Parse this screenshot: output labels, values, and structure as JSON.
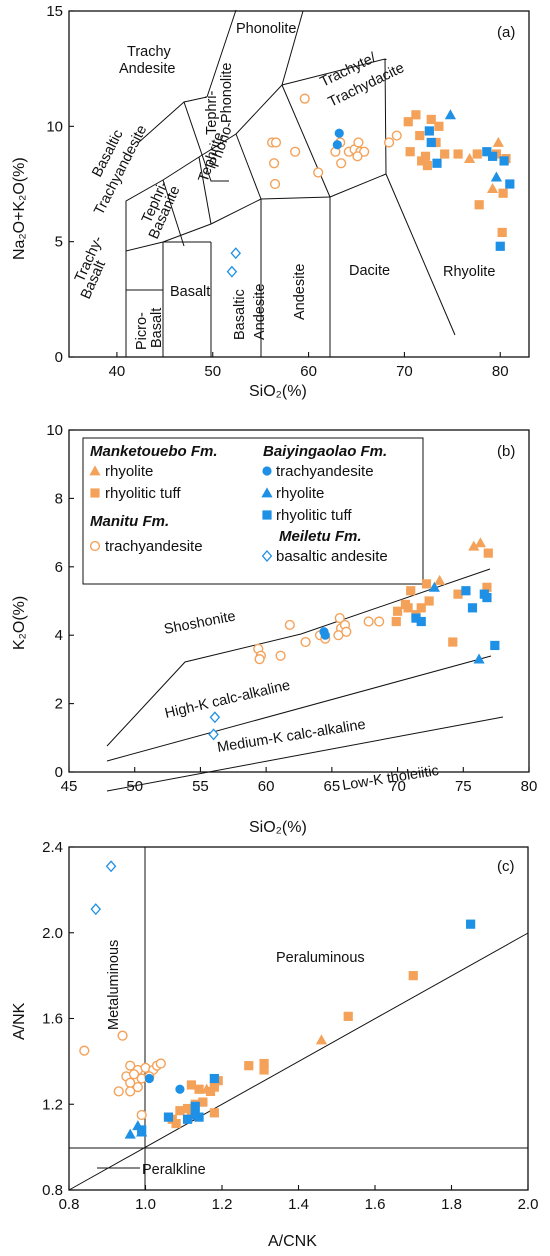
{
  "colors": {
    "orange": "#f4a259",
    "blue": "#1e90e6"
  },
  "legend": {
    "groups": [
      {
        "title": "Manketouebo Fm.",
        "items": [
          {
            "label": "rhyolite",
            "marker": "triangle",
            "color": "#f4a259"
          },
          {
            "label": "rhyolitic tuff",
            "marker": "square",
            "color": "#f4a259"
          }
        ]
      },
      {
        "title": "Manitu Fm.",
        "items": [
          {
            "label": "trachyandesite",
            "marker": "circle-open",
            "color": "#f4a259"
          }
        ]
      },
      {
        "title": "Baiyingaolao Fm.",
        "items": [
          {
            "label": "trachyandesite",
            "marker": "circle",
            "color": "#1e90e6"
          },
          {
            "label": "rhyolite",
            "marker": "triangle",
            "color": "#1e90e6"
          },
          {
            "label": "rhyolitic tuff",
            "marker": "square",
            "color": "#1e90e6"
          }
        ]
      },
      {
        "title": "Meiletu Fm.",
        "items": [
          {
            "label": "basaltic andesite",
            "marker": "diamond-open",
            "color": "#1e90e6"
          }
        ]
      }
    ]
  },
  "chart_data": [
    {
      "panel": "(a)",
      "type": "scatter",
      "xlabel": "SiO₂(%)",
      "ylabel": "Na₂O+K₂O(%)",
      "xlim": [
        35,
        83
      ],
      "ylim": [
        0,
        15
      ],
      "xticks": [
        40,
        50,
        60,
        70,
        80
      ],
      "yticks": [
        0,
        5,
        10,
        15
      ],
      "fields": [
        "Phonolite",
        "Trachy",
        "Andesite",
        "Tephri-",
        "Phonolite",
        "Trachyte/",
        "Trachydacite",
        "Basaltic",
        "Trachyandesite",
        "Phono-",
        "Tephrite",
        "Tephri-",
        "Basanite",
        "Trachy-",
        "Basalt",
        "Basalt",
        "Picro-",
        "Basalt",
        "Basaltic",
        "Andesite",
        "Andesite",
        "Dacite",
        "Rhyolite"
      ],
      "series": [
        {
          "formation": "Manketouebo Fm.",
          "rock": "rhyolite",
          "marker": "triangle",
          "color": "#f4a259",
          "points": [
            [
              76.8,
              8.6
            ],
            [
              79.8,
              9.3
            ],
            [
              79.2,
              7.3
            ]
          ]
        },
        {
          "formation": "Manketouebo Fm.",
          "rock": "rhyolitic tuff",
          "marker": "square",
          "color": "#f4a259",
          "points": [
            [
              71.2,
              10.5
            ],
            [
              70.4,
              10.2
            ],
            [
              72.8,
              10.3
            ],
            [
              73.6,
              10.0
            ],
            [
              71.6,
              9.6
            ],
            [
              73.3,
              9.3
            ],
            [
              70.6,
              8.9
            ],
            [
              72.2,
              8.7
            ],
            [
              71.8,
              8.5
            ],
            [
              72.4,
              8.3
            ],
            [
              74.2,
              8.8
            ],
            [
              75.6,
              8.8
            ],
            [
              77.6,
              8.8
            ],
            [
              79.6,
              8.8
            ],
            [
              80.6,
              8.6
            ],
            [
              80.3,
              7.1
            ],
            [
              77.8,
              6.6
            ],
            [
              80.2,
              5.4
            ]
          ]
        },
        {
          "formation": "Manitu Fm.",
          "rock": "trachyandesite",
          "marker": "circle-open",
          "color": "#f4a259",
          "points": [
            [
              59.6,
              11.2
            ],
            [
              56.2,
              9.3
            ],
            [
              56.6,
              9.3
            ],
            [
              58.6,
              8.9
            ],
            [
              56.4,
              8.4
            ],
            [
              56.5,
              7.5
            ],
            [
              61.0,
              8.0
            ],
            [
              62.8,
              8.9
            ],
            [
              63.3,
              9.3
            ],
            [
              63.4,
              8.4
            ],
            [
              64.2,
              8.9
            ],
            [
              64.8,
              9.0
            ],
            [
              65.2,
              9.3
            ],
            [
              65.4,
              8.9
            ],
            [
              65.8,
              8.9
            ],
            [
              65.1,
              8.7
            ],
            [
              68.4,
              9.3
            ],
            [
              69.2,
              9.6
            ]
          ]
        },
        {
          "formation": "Baiyingaolao Fm.",
          "rock": "trachyandesite",
          "marker": "circle",
          "color": "#1e90e6",
          "points": [
            [
              63.2,
              9.7
            ],
            [
              63.0,
              9.2
            ]
          ]
        },
        {
          "formation": "Baiyingaolao Fm.",
          "rock": "rhyolite",
          "marker": "triangle",
          "color": "#1e90e6",
          "points": [
            [
              74.8,
              10.5
            ],
            [
              79.6,
              7.8
            ]
          ]
        },
        {
          "formation": "Baiyingaolao Fm.",
          "rock": "rhyolitic tuff",
          "marker": "square",
          "color": "#1e90e6",
          "points": [
            [
              72.6,
              9.8
            ],
            [
              72.8,
              9.3
            ],
            [
              73.4,
              8.4
            ],
            [
              78.6,
              8.9
            ],
            [
              79.2,
              8.7
            ],
            [
              80.4,
              8.5
            ],
            [
              81.0,
              7.5
            ],
            [
              80.0,
              4.8
            ]
          ]
        },
        {
          "formation": "Meiletu Fm.",
          "rock": "basaltic andesite",
          "marker": "diamond-open",
          "color": "#1e90e6",
          "points": [
            [
              52.4,
              4.5
            ],
            [
              52.0,
              3.7
            ]
          ]
        }
      ]
    },
    {
      "panel": "(b)",
      "type": "scatter",
      "xlabel": "SiO₂(%)",
      "ylabel": "K₂O(%)",
      "xlim": [
        45,
        80
      ],
      "ylim": [
        0,
        10
      ],
      "xticks": [
        45,
        50,
        55,
        60,
        65,
        70,
        75,
        80
      ],
      "yticks": [
        0,
        2,
        4,
        6,
        8,
        10
      ],
      "fields": [
        "Shoshonite",
        "High-K calc-alkaline",
        "Medium-K calc-alkaline",
        "Low-K tholeiitic"
      ],
      "series": [
        {
          "formation": "Manketouebo Fm.",
          "rock": "rhyolite",
          "marker": "triangle",
          "color": "#f4a259",
          "points": [
            [
              75.8,
              6.6
            ],
            [
              76.3,
              6.7
            ],
            [
              73.2,
              5.6
            ]
          ]
        },
        {
          "formation": "Manketouebo Fm.",
          "rock": "rhyolitic tuff",
          "marker": "square",
          "color": "#f4a259",
          "points": [
            [
              76.9,
              6.4
            ],
            [
              72.2,
              5.5
            ],
            [
              71.0,
              5.3
            ],
            [
              70.6,
              4.9
            ],
            [
              71.4,
              4.6
            ],
            [
              71.8,
              4.8
            ],
            [
              70.0,
              4.7
            ],
            [
              72.4,
              5.0
            ],
            [
              76.8,
              5.4
            ],
            [
              74.6,
              5.2
            ],
            [
              69.9,
              4.4
            ],
            [
              74.2,
              3.8
            ],
            [
              70.8,
              4.8
            ]
          ]
        },
        {
          "formation": "Manitu Fm.",
          "rock": "trachyandesite",
          "marker": "circle-open",
          "color": "#f4a259",
          "points": [
            [
              59.4,
              3.6
            ],
            [
              59.6,
              3.4
            ],
            [
              59.5,
              3.3
            ],
            [
              61.1,
              3.4
            ],
            [
              61.8,
              4.3
            ],
            [
              63.0,
              3.8
            ],
            [
              64.1,
              4.0
            ],
            [
              64.5,
              3.9
            ],
            [
              65.6,
              4.5
            ],
            [
              65.7,
              4.2
            ],
            [
              65.5,
              4.0
            ],
            [
              66.0,
              4.3
            ],
            [
              66.1,
              4.1
            ],
            [
              67.8,
              4.4
            ],
            [
              68.6,
              4.4
            ]
          ]
        },
        {
          "formation": "Baiyingaolao Fm.",
          "rock": "trachyandesite",
          "marker": "circle",
          "color": "#1e90e6",
          "points": [
            [
              64.4,
              4.1
            ],
            [
              64.5,
              4.0
            ]
          ]
        },
        {
          "formation": "Baiyingaolao Fm.",
          "rock": "rhyolite",
          "marker": "triangle",
          "color": "#1e90e6",
          "points": [
            [
              72.8,
              5.4
            ],
            [
              76.2,
              3.3
            ]
          ]
        },
        {
          "formation": "Baiyingaolao Fm.",
          "rock": "rhyolitic tuff",
          "marker": "square",
          "color": "#1e90e6",
          "points": [
            [
              71.4,
              4.5
            ],
            [
              71.8,
              4.4
            ],
            [
              75.2,
              5.3
            ],
            [
              76.6,
              5.2
            ],
            [
              76.8,
              5.1
            ],
            [
              75.7,
              4.8
            ],
            [
              77.4,
              3.7
            ]
          ]
        },
        {
          "formation": "Meiletu Fm.",
          "rock": "basaltic andesite",
          "marker": "diamond-open",
          "color": "#1e90e6",
          "points": [
            [
              56.1,
              1.6
            ],
            [
              56.0,
              1.1
            ]
          ]
        }
      ]
    },
    {
      "panel": "(c)",
      "type": "scatter",
      "xlabel": "A/CNK",
      "ylabel": "A/NK",
      "xlim": [
        0.8,
        2.0
      ],
      "ylim": [
        0.8,
        2.4
      ],
      "xticks": [
        "0.8",
        "1.0",
        "1.2",
        "1.4",
        "1.6",
        "1.8",
        "2.0"
      ],
      "yticks": [
        "0.8",
        "1.2",
        "1.6",
        "2.0",
        "2.4"
      ],
      "fields": [
        "Metaluminous",
        "Peraluminous",
        "Peralkline"
      ],
      "series": [
        {
          "formation": "Manketouebo Fm.",
          "rock": "rhyolite",
          "marker": "triangle",
          "color": "#f4a259",
          "points": [
            [
              1.16,
              1.27
            ],
            [
              1.46,
              1.5
            ]
          ]
        },
        {
          "formation": "Manketouebo Fm.",
          "rock": "rhyolitic tuff",
          "marker": "square",
          "color": "#f4a259",
          "points": [
            [
              1.7,
              1.8
            ],
            [
              1.53,
              1.61
            ],
            [
              1.27,
              1.38
            ],
            [
              1.31,
              1.39
            ],
            [
              1.31,
              1.36
            ],
            [
              1.12,
              1.29
            ],
            [
              1.14,
              1.27
            ],
            [
              1.17,
              1.26
            ],
            [
              1.18,
              1.28
            ],
            [
              1.19,
              1.31
            ],
            [
              1.13,
              1.2
            ],
            [
              1.15,
              1.21
            ],
            [
              1.09,
              1.17
            ],
            [
              1.11,
              1.18
            ],
            [
              1.07,
              1.13
            ],
            [
              1.08,
              1.11
            ],
            [
              1.12,
              1.15
            ],
            [
              1.18,
              1.16
            ]
          ]
        },
        {
          "formation": "Manitu Fm.",
          "rock": "trachyandesite",
          "marker": "circle-open",
          "color": "#f4a259",
          "points": [
            [
              0.84,
              1.45
            ],
            [
              0.94,
              1.52
            ],
            [
              0.96,
              1.38
            ],
            [
              0.98,
              1.36
            ],
            [
              1.0,
              1.37
            ],
            [
              1.02,
              1.36
            ],
            [
              1.03,
              1.38
            ],
            [
              1.04,
              1.39
            ],
            [
              0.95,
              1.33
            ],
            [
              0.97,
              1.34
            ],
            [
              0.99,
              1.32
            ],
            [
              0.96,
              1.3
            ],
            [
              0.96,
              1.26
            ],
            [
              0.98,
              1.28
            ],
            [
              0.93,
              1.26
            ],
            [
              0.99,
              1.15
            ],
            [
              1.01,
              1.33
            ]
          ]
        },
        {
          "formation": "Baiyingaolao Fm.",
          "rock": "trachyandesite",
          "marker": "circle",
          "color": "#1e90e6",
          "points": [
            [
              1.01,
              1.32
            ],
            [
              1.09,
              1.27
            ]
          ]
        },
        {
          "formation": "Baiyingaolao Fm.",
          "rock": "rhyolite",
          "marker": "triangle",
          "color": "#1e90e6",
          "points": [
            [
              0.96,
              1.06
            ],
            [
              0.98,
              1.1
            ],
            [
              0.99,
              1.07
            ]
          ]
        },
        {
          "formation": "Baiyingaolao Fm.",
          "rock": "rhyolitic tuff",
          "marker": "square",
          "color": "#1e90e6",
          "points": [
            [
              1.85,
              2.04
            ],
            [
              1.18,
              1.32
            ],
            [
              1.13,
              1.19
            ],
            [
              1.13,
              1.15
            ],
            [
              1.11,
              1.13
            ],
            [
              1.06,
              1.14
            ],
            [
              1.14,
              1.14
            ],
            [
              0.99,
              1.08
            ]
          ]
        },
        {
          "formation": "Meiletu Fm.",
          "rock": "basaltic andesite",
          "marker": "diamond-open",
          "color": "#1e90e6",
          "points": [
            [
              0.91,
              2.31
            ],
            [
              0.87,
              2.11
            ]
          ]
        }
      ]
    }
  ]
}
